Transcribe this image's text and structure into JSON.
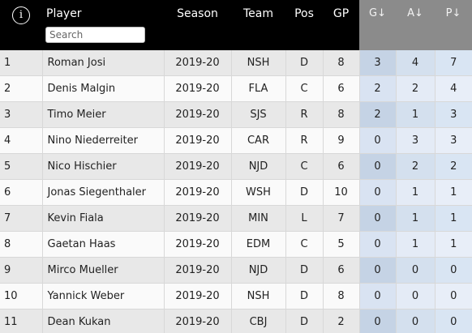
{
  "header": {
    "info_icon": "info-icon",
    "player": "Player",
    "season": "Season",
    "team": "Team",
    "pos": "Pos",
    "gp": "GP",
    "g": "G↓",
    "a": "A↓",
    "p": "P↓",
    "search_placeholder": "Search",
    "search_value": ""
  },
  "colors": {
    "header_bg": "#000000",
    "sorted_header_bg": "#8b8b8b",
    "stat_cell": "#d9e3f2"
  },
  "rows": [
    {
      "rank": "1",
      "player": "Roman Josi",
      "season": "2019-20",
      "team": "NSH",
      "pos": "D",
      "gp": "8",
      "g": "3",
      "a": "4",
      "p": "7"
    },
    {
      "rank": "2",
      "player": "Denis Malgin",
      "season": "2019-20",
      "team": "FLA",
      "pos": "C",
      "gp": "6",
      "g": "2",
      "a": "2",
      "p": "4"
    },
    {
      "rank": "3",
      "player": "Timo Meier",
      "season": "2019-20",
      "team": "SJS",
      "pos": "R",
      "gp": "8",
      "g": "2",
      "a": "1",
      "p": "3"
    },
    {
      "rank": "4",
      "player": "Nino Niederreiter",
      "season": "2019-20",
      "team": "CAR",
      "pos": "R",
      "gp": "9",
      "g": "0",
      "a": "3",
      "p": "3"
    },
    {
      "rank": "5",
      "player": "Nico Hischier",
      "season": "2019-20",
      "team": "NJD",
      "pos": "C",
      "gp": "6",
      "g": "0",
      "a": "2",
      "p": "2"
    },
    {
      "rank": "6",
      "player": "Jonas Siegenthaler",
      "season": "2019-20",
      "team": "WSH",
      "pos": "D",
      "gp": "10",
      "g": "0",
      "a": "1",
      "p": "1"
    },
    {
      "rank": "7",
      "player": "Kevin Fiala",
      "season": "2019-20",
      "team": "MIN",
      "pos": "L",
      "gp": "7",
      "g": "0",
      "a": "1",
      "p": "1"
    },
    {
      "rank": "8",
      "player": "Gaetan Haas",
      "season": "2019-20",
      "team": "EDM",
      "pos": "C",
      "gp": "5",
      "g": "0",
      "a": "1",
      "p": "1"
    },
    {
      "rank": "9",
      "player": "Mirco Mueller",
      "season": "2019-20",
      "team": "NJD",
      "pos": "D",
      "gp": "6",
      "g": "0",
      "a": "0",
      "p": "0"
    },
    {
      "rank": "10",
      "player": "Yannick Weber",
      "season": "2019-20",
      "team": "NSH",
      "pos": "D",
      "gp": "8",
      "g": "0",
      "a": "0",
      "p": "0"
    },
    {
      "rank": "11",
      "player": "Dean Kukan",
      "season": "2019-20",
      "team": "CBJ",
      "pos": "D",
      "gp": "2",
      "g": "0",
      "a": "0",
      "p": "0"
    }
  ]
}
